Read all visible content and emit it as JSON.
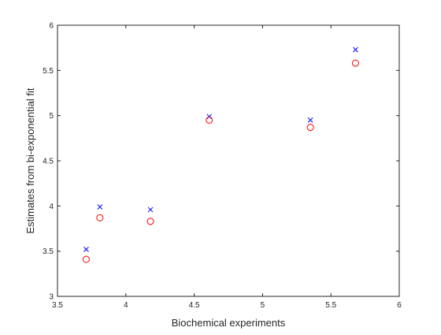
{
  "chart_data": {
    "type": "scatter",
    "title": "",
    "xlabel": "Biochemical experiments",
    "ylabel": "Estimates from bi-exponential fit",
    "xlim": [
      3.5,
      6
    ],
    "ylim": [
      3,
      6
    ],
    "xticks": [
      3.5,
      4,
      4.5,
      5,
      5.5,
      6
    ],
    "yticks": [
      3,
      3.5,
      4,
      4.5,
      5,
      5.5,
      6
    ],
    "xtick_labels": [
      "3.5",
      "4",
      "4.5",
      "5",
      "5.5",
      "6"
    ],
    "ytick_labels": [
      "3",
      "3.5",
      "4",
      "4.5",
      "5",
      "5.5",
      "6"
    ],
    "grid": false,
    "legend": "none",
    "series": [
      {
        "marker": "x",
        "color": "#0000ff",
        "points": [
          {
            "x": 3.71,
            "y": 3.52
          },
          {
            "x": 3.81,
            "y": 3.99
          },
          {
            "x": 4.18,
            "y": 3.96
          },
          {
            "x": 4.61,
            "y": 4.99
          },
          {
            "x": 5.35,
            "y": 4.95
          },
          {
            "x": 5.68,
            "y": 5.73
          }
        ]
      },
      {
        "marker": "o",
        "color": "#ff0000",
        "points": [
          {
            "x": 3.71,
            "y": 3.41
          },
          {
            "x": 3.81,
            "y": 3.87
          },
          {
            "x": 4.18,
            "y": 3.83
          },
          {
            "x": 4.61,
            "y": 4.95
          },
          {
            "x": 5.35,
            "y": 4.87
          },
          {
            "x": 5.68,
            "y": 5.58
          }
        ]
      }
    ]
  }
}
